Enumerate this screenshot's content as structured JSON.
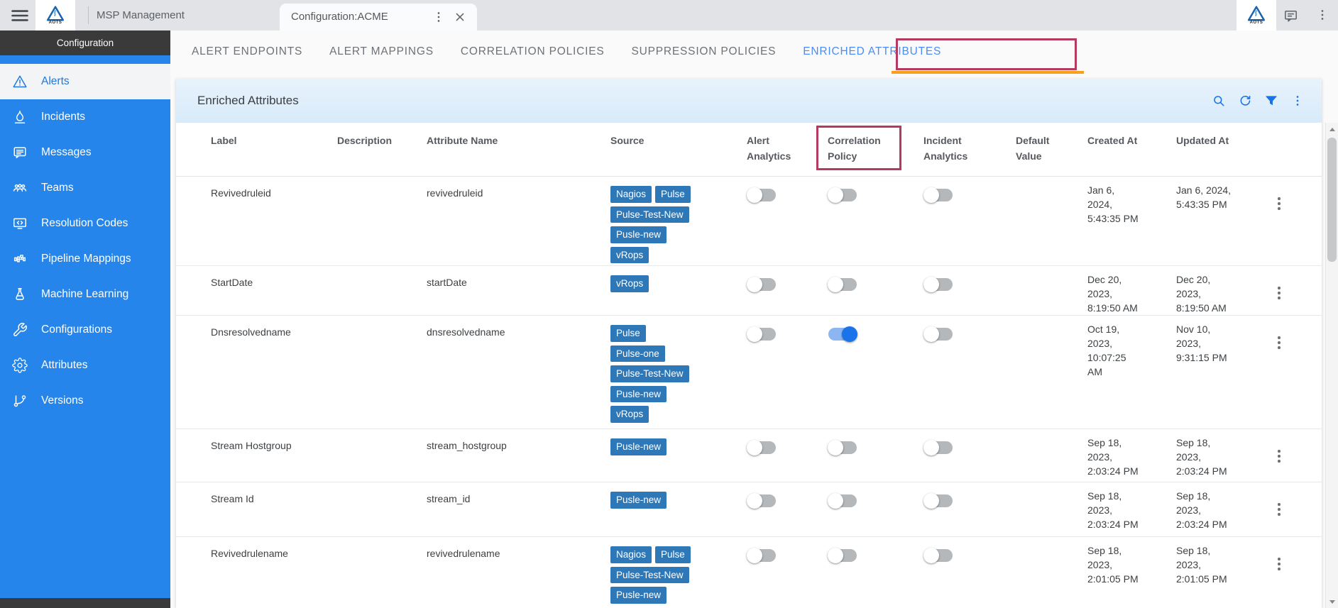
{
  "topbar": {
    "brand": "AOTS",
    "tabs": [
      {
        "label": "MSP Management",
        "active": false
      },
      {
        "label": "Configuration:ACME",
        "active": true
      }
    ],
    "right_icons": [
      "brand-logo",
      "chat-icon",
      "more-icon"
    ]
  },
  "sidebar": {
    "header": "Configuration",
    "items": [
      {
        "label": "Alerts",
        "icon": "alert-triangle-icon",
        "selected": true
      },
      {
        "label": "Incidents",
        "icon": "flame-icon",
        "selected": false
      },
      {
        "label": "Messages",
        "icon": "message-icon",
        "selected": false
      },
      {
        "label": "Teams",
        "icon": "teams-icon",
        "selected": false
      },
      {
        "label": "Resolution Codes",
        "icon": "resolution-codes-icon",
        "selected": false
      },
      {
        "label": "Pipeline Mappings",
        "icon": "pipeline-icon",
        "selected": false
      },
      {
        "label": "Machine Learning",
        "icon": "flask-icon",
        "selected": false
      },
      {
        "label": "Configurations",
        "icon": "wrench-icon",
        "selected": false
      },
      {
        "label": "Attributes",
        "icon": "gear-icon",
        "selected": false
      },
      {
        "label": "Versions",
        "icon": "branch-icon",
        "selected": false
      }
    ]
  },
  "page_tabs": [
    {
      "label": "ALERT ENDPOINTS",
      "active": false
    },
    {
      "label": "ALERT MAPPINGS",
      "active": false
    },
    {
      "label": "CORRELATION POLICIES",
      "active": false
    },
    {
      "label": "SUPPRESSION POLICIES",
      "active": false
    },
    {
      "label": "ENRICHED ATTRIBUTES",
      "active": true
    }
  ],
  "card": {
    "title": "Enriched Attributes",
    "toolbar_icons": [
      "search-icon",
      "refresh-icon",
      "filter-icon",
      "more-icon"
    ]
  },
  "table": {
    "columns": [
      "Label",
      "Description",
      "Attribute Name",
      "Source",
      "Alert Analytics",
      "Correlation Policy",
      "Incident Analytics",
      "Default Value",
      "Created At",
      "Updated At"
    ],
    "rows": [
      {
        "label": "Revivedruleid",
        "description": "",
        "attribute_name": "revivedruleid",
        "sources": [
          "Nagios",
          "Pulse",
          "Pulse-Test-New",
          "Pusle-new",
          "vRops"
        ],
        "alert_analytics": false,
        "correlation_policy": false,
        "incident_analytics": false,
        "default_value": "",
        "created_at": "Jan 6,\n2024,\n5:43:35 PM",
        "updated_at": "Jan 6, 2024,\n5:43:35 PM"
      },
      {
        "label": "StartDate",
        "description": "",
        "attribute_name": "startDate",
        "sources": [
          "vRops"
        ],
        "alert_analytics": false,
        "correlation_policy": false,
        "incident_analytics": false,
        "default_value": "",
        "created_at": "Dec 20,\n2023,\n8:19:50 AM",
        "updated_at": "Dec 20,\n2023,\n8:19:50 AM"
      },
      {
        "label": "Dnsresolvedname",
        "description": "",
        "attribute_name": "dnsresolvedname",
        "sources": [
          "Pulse",
          "Pulse-one",
          "Pulse-Test-New",
          "Pusle-new",
          "vRops"
        ],
        "alert_analytics": false,
        "correlation_policy": true,
        "incident_analytics": false,
        "default_value": "",
        "created_at": "Oct 19,\n2023,\n10:07:25\nAM",
        "updated_at": "Nov 10,\n2023,\n9:31:15 PM"
      },
      {
        "label": "Stream Hostgroup",
        "description": "",
        "attribute_name": "stream_hostgroup",
        "sources": [
          "Pusle-new"
        ],
        "alert_analytics": false,
        "correlation_policy": false,
        "incident_analytics": false,
        "default_value": "",
        "created_at": "Sep 18,\n2023,\n2:03:24 PM",
        "updated_at": "Sep 18,\n2023,\n2:03:24 PM"
      },
      {
        "label": "Stream Id",
        "description": "",
        "attribute_name": "stream_id",
        "sources": [
          "Pusle-new"
        ],
        "alert_analytics": false,
        "correlation_policy": false,
        "incident_analytics": false,
        "default_value": "",
        "created_at": "Sep 18,\n2023,\n2:03:24 PM",
        "updated_at": "Sep 18,\n2023,\n2:03:24 PM"
      },
      {
        "label": "Revivedrulename",
        "description": "",
        "attribute_name": "revivedrulename",
        "sources": [
          "Nagios",
          "Pulse",
          "Pulse-Test-New",
          "Pusle-new"
        ],
        "alert_analytics": false,
        "correlation_policy": false,
        "incident_analytics": false,
        "default_value": "",
        "created_at": "Sep 18,\n2023,\n2:01:05 PM",
        "updated_at": "Sep 18,\n2023,\n2:01:05 PM"
      }
    ]
  },
  "annotations": [
    {
      "type": "box",
      "target": "enriched-attributes-tab"
    },
    {
      "type": "box",
      "target": "correlation-policy-column-header"
    }
  ],
  "colors": {
    "sidebar_blue": "#2585ea",
    "tag_blue": "#2e78b8",
    "toggle_on_blue": "#1a73e8",
    "annotation_red": "#b43a5f",
    "active_tab_underline_orange": "#f7a11a",
    "active_tab_text_blue": "#4a8cf7",
    "card_header_blue": "#d8eafa",
    "toolbar_icon_blue": "#1a73e8"
  }
}
